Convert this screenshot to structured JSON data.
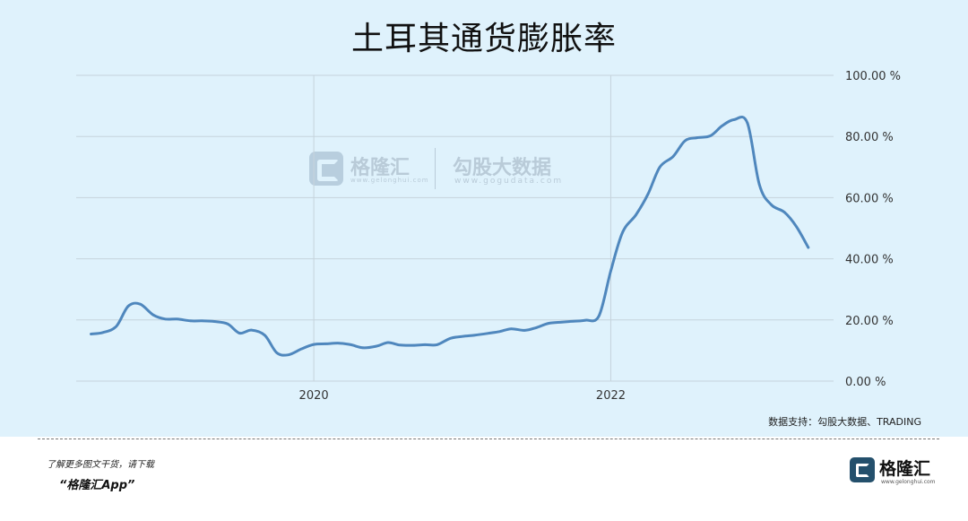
{
  "title": "土耳其通货膨胀率",
  "watermark": {
    "brand": "格隆汇",
    "brand_url": "www.gelonghui.com",
    "partner": "勾股大数据",
    "partner_url": "www.gogudata.com"
  },
  "source": "数据支持：勾股大数据、TRADING",
  "footer": {
    "tip": "了解更多图文干货，请下载",
    "app": "“格隆汇App”",
    "brand": "格隆汇",
    "brand_url": "www.gelonghui.com"
  },
  "colors": {
    "panel": "#dff2fc",
    "line": "#4f87bd",
    "grid": "#c6d3dc"
  },
  "chart_data": {
    "type": "line",
    "title": "土耳其通货膨胀率",
    "x_unit": "year",
    "xlim": [
      2018.4,
      2023.5
    ],
    "ylim": [
      0,
      100
    ],
    "x_ticks": [
      2020,
      2022
    ],
    "x_tick_labels": [
      "2020",
      "2022"
    ],
    "y_ticks": [
      0,
      20,
      40,
      60,
      80,
      100
    ],
    "y_tick_labels": [
      "0.00 %",
      "20.00 %",
      "40.00 %",
      "60.00 %",
      "80.00 %",
      "100.00 %"
    ],
    "grid": true,
    "series": [
      {
        "x": [
          2018.5,
          2018.58,
          2018.67,
          2018.75,
          2018.83,
          2018.92,
          2019.0,
          2019.08,
          2019.17,
          2019.25,
          2019.33,
          2019.42,
          2019.5,
          2019.58,
          2019.67,
          2019.75,
          2019.83,
          2019.92,
          2020.0,
          2020.08,
          2020.17,
          2020.25,
          2020.33,
          2020.42,
          2020.5,
          2020.58,
          2020.67,
          2020.75,
          2020.83,
          2020.92,
          2021.0,
          2021.08,
          2021.17,
          2021.25,
          2021.33,
          2021.42,
          2021.5,
          2021.58,
          2021.67,
          2021.75,
          2021.83,
          2021.92,
          2022.0,
          2022.08,
          2022.17,
          2022.25,
          2022.33,
          2022.42,
          2022.5,
          2022.58,
          2022.67,
          2022.75,
          2022.83,
          2022.92,
          2023.0,
          2023.08,
          2023.17,
          2023.25,
          2023.33
        ],
        "values": [
          15.4,
          15.9,
          17.9,
          24.5,
          25.2,
          21.6,
          20.3,
          20.3,
          19.7,
          19.7,
          19.5,
          18.7,
          15.7,
          16.7,
          15.0,
          9.3,
          8.6,
          10.6,
          12.0,
          12.2,
          12.4,
          11.9,
          10.9,
          11.4,
          12.6,
          11.8,
          11.7,
          11.9,
          11.9,
          14.0,
          14.6,
          15.0,
          15.6,
          16.2,
          17.1,
          16.6,
          17.5,
          18.9,
          19.3,
          19.6,
          19.9,
          21.3,
          36.1,
          48.7,
          54.4,
          61.1,
          69.97,
          73.5,
          78.6,
          79.6,
          80.2,
          83.5,
          85.5,
          84.4,
          64.3,
          57.7,
          55.2,
          50.5,
          43.7
        ]
      }
    ]
  }
}
